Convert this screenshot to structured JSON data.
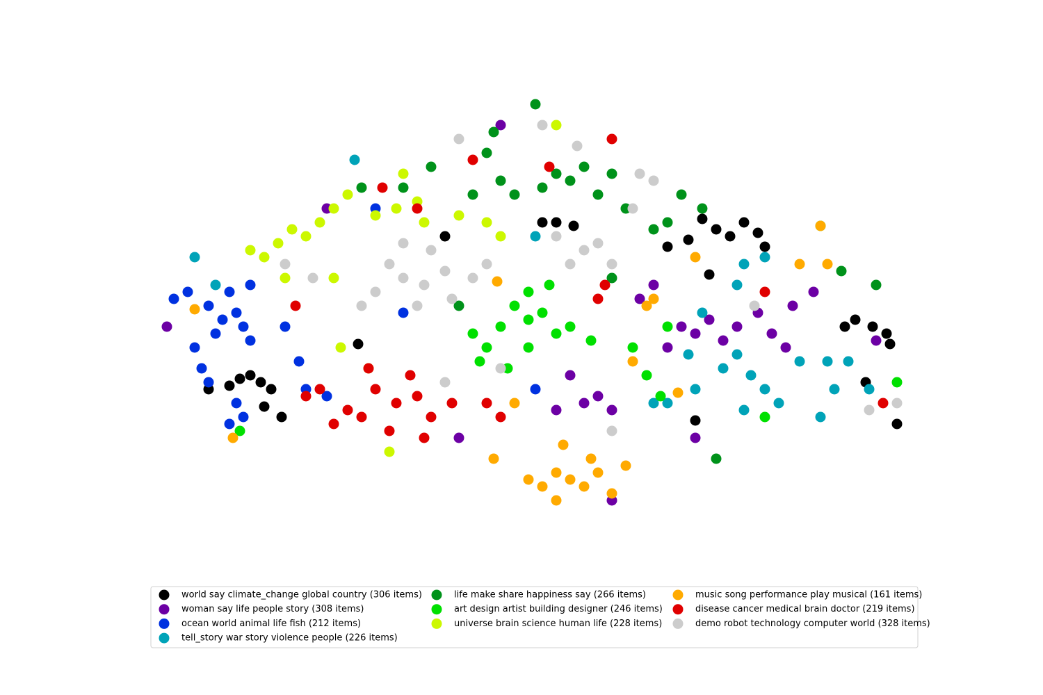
{
  "chart_data": {
    "type": "scatter",
    "xlim": [
      200,
      1340
    ],
    "ylim": [
      250,
      870
    ],
    "series": [
      {
        "name": "world say climate_change global country (306 items)",
        "color": "#000000",
        "x": [
          345,
          360,
          375,
          390,
          330,
          300,
          380,
          405,
          1030,
          1050,
          1070,
          1090,
          1010,
          990,
          1100,
          800,
          825,
          780,
          1230,
          1255,
          1275,
          1280,
          1215,
          1290,
          1000,
          515,
          640,
          960,
          1245,
          1020
        ],
        "y": [
          455,
          460,
          450,
          440,
          445,
          440,
          415,
          400,
          670,
          660,
          680,
          665,
          685,
          655,
          645,
          680,
          675,
          680,
          540,
          530,
          520,
          505,
          530,
          390,
          395,
          505,
          660,
          645,
          450,
          605
        ]
      },
      {
        "name": "woman say life people story (308 items)",
        "color": "#6c00a4",
        "x": [
          1000,
          1020,
          980,
          1040,
          960,
          1060,
          1090,
          1110,
          1140,
          860,
          880,
          840,
          820,
          800,
          920,
          940,
          1130,
          1170,
          470,
          720,
          240,
          660,
          1000,
          880,
          1260
        ],
        "y": [
          520,
          540,
          530,
          510,
          500,
          530,
          550,
          520,
          560,
          430,
          410,
          420,
          460,
          410,
          570,
          590,
          500,
          580,
          700,
          820,
          530,
          370,
          370,
          280,
          510
        ]
      },
      {
        "name": "ocean world animal life fish (212 items)",
        "color": "#0031e0",
        "x": [
          320,
          300,
          340,
          310,
          350,
          280,
          270,
          250,
          330,
          360,
          290,
          300,
          340,
          330,
          350,
          440,
          430,
          410,
          360,
          470,
          540,
          770,
          580
        ],
        "y": [
          540,
          560,
          550,
          520,
          530,
          500,
          580,
          570,
          580,
          510,
          470,
          450,
          420,
          390,
          400,
          440,
          480,
          530,
          590,
          430,
          700,
          440,
          550
        ]
      },
      {
        "name": "tell_story war story violence people (226 items)",
        "color": "#00a3b8",
        "x": [
          1080,
          1060,
          1100,
          1040,
          1120,
          1000,
          960,
          1150,
          1190,
          1220,
          1200,
          1250,
          1070,
          990,
          1010,
          1070,
          1060,
          1100,
          770,
          280,
          510,
          310,
          940,
          1180
        ],
        "y": [
          460,
          490,
          440,
          470,
          420,
          440,
          420,
          480,
          480,
          480,
          440,
          440,
          410,
          490,
          550,
          620,
          590,
          630,
          660,
          630,
          770,
          590,
          420,
          400
        ]
      },
      {
        "name": "life make share happiness say (266 items)",
        "color": "#00921a",
        "x": [
          820,
          800,
          840,
          780,
          860,
          880,
          740,
          720,
          700,
          710,
          770,
          900,
          940,
          980,
          960,
          680,
          620,
          580,
          1010,
          1210,
          1260,
          1030,
          880,
          520,
          660
        ],
        "y": [
          740,
          750,
          760,
          730,
          720,
          750,
          720,
          740,
          780,
          810,
          850,
          700,
          670,
          720,
          680,
          720,
          760,
          730,
          700,
          610,
          590,
          340,
          600,
          730,
          560
        ]
      },
      {
        "name": "art design artist building designer (246 items)",
        "color": "#00e000",
        "x": [
          760,
          740,
          780,
          720,
          800,
          760,
          700,
          680,
          820,
          850,
          760,
          790,
          730,
          690,
          910,
          930,
          950,
          960,
          345,
          1100,
          1290,
          1180
        ],
        "y": [
          540,
          560,
          550,
          530,
          520,
          500,
          500,
          520,
          530,
          510,
          580,
          590,
          470,
          480,
          500,
          460,
          430,
          530,
          380,
          400,
          450,
          675
        ]
      },
      {
        "name": "universe brain science human life (228 items)",
        "color": "#ccf800",
        "x": [
          420,
          400,
          440,
          380,
          360,
          410,
          460,
          480,
          500,
          540,
          570,
          600,
          580,
          610,
          660,
          700,
          720,
          800,
          490,
          530,
          560,
          480
        ],
        "y": [
          670,
          650,
          660,
          630,
          640,
          600,
          680,
          700,
          720,
          690,
          700,
          710,
          750,
          680,
          690,
          680,
          660,
          820,
          500,
          470,
          350,
          600
        ]
      },
      {
        "name": "music song performance play musical (161 items)",
        "color": "#ffaa00",
        "x": [
          820,
          800,
          840,
          780,
          860,
          880,
          760,
          900,
          810,
          850,
          800,
          740,
          710,
          940,
          930,
          1000,
          1150,
          1190,
          1180,
          280,
          335,
          715,
          910,
          975
        ],
        "y": [
          310,
          320,
          300,
          300,
          320,
          290,
          310,
          330,
          360,
          340,
          280,
          420,
          340,
          570,
          560,
          630,
          620,
          620,
          675,
          555,
          370,
          595,
          480,
          435
        ]
      },
      {
        "name": "disease cancer medical brain doctor (219 items)",
        "color": "#e00000",
        "x": [
          570,
          540,
          600,
          520,
          560,
          620,
          590,
          650,
          500,
          480,
          460,
          700,
          720,
          530,
          610,
          440,
          860,
          870,
          790,
          880,
          680,
          550,
          600,
          1270,
          1100,
          425
        ],
        "y": [
          420,
          440,
          430,
          400,
          380,
          400,
          460,
          420,
          410,
          390,
          440,
          420,
          400,
          470,
          370,
          430,
          570,
          590,
          760,
          800,
          770,
          730,
          700,
          420,
          580,
          560
        ]
      },
      {
        "name": "demo robot technology computer world (328 items)",
        "color": "#cccccc",
        "x": [
          610,
          580,
          640,
          560,
          600,
          650,
          540,
          520,
          680,
          700,
          620,
          580,
          840,
          860,
          820,
          880,
          800,
          940,
          920,
          910,
          660,
          780,
          830,
          450,
          410,
          1085,
          1250,
          1290,
          880,
          640,
          720
        ],
        "y": [
          590,
          600,
          610,
          620,
          560,
          570,
          580,
          560,
          600,
          620,
          640,
          650,
          640,
          650,
          620,
          620,
          660,
          740,
          750,
          700,
          800,
          820,
          790,
          600,
          620,
          560,
          410,
          420,
          380,
          450,
          470
        ]
      }
    ],
    "legend": "lower center",
    "legend_columns": 3
  }
}
